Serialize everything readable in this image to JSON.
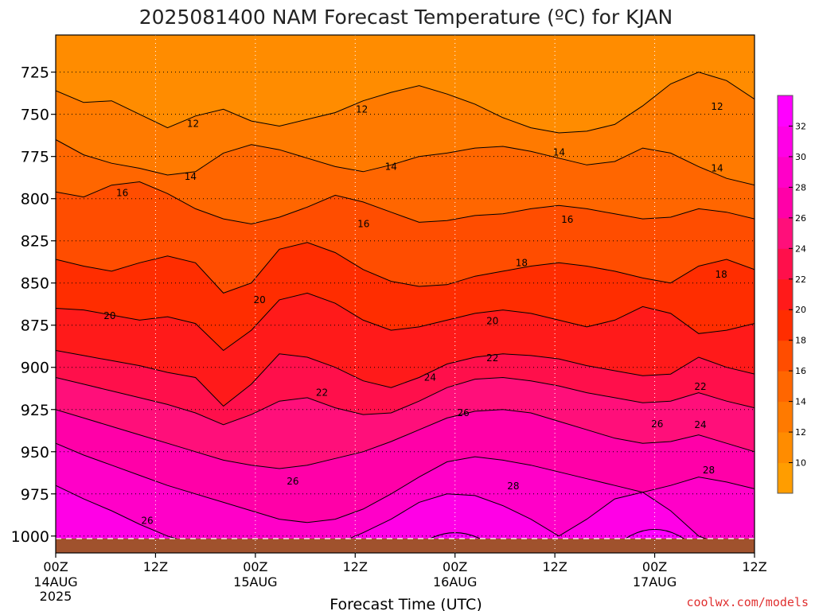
{
  "chart_data": {
    "type": "heatmap",
    "title": "2025081400 NAM Forecast Temperature (ºC) for KJAN",
    "xlabel": "Forecast Time (UTC)",
    "ylabel": "",
    "credit": "coolwx.com/models",
    "x_ticks": [
      {
        "hour": 0,
        "label": "00Z",
        "date": "14AUG",
        "year": "2025"
      },
      {
        "hour": 12,
        "label": "12Z",
        "date": "",
        "year": ""
      },
      {
        "hour": 24,
        "label": "00Z",
        "date": "15AUG",
        "year": ""
      },
      {
        "hour": 36,
        "label": "12Z",
        "date": "",
        "year": ""
      },
      {
        "hour": 48,
        "label": "00Z",
        "date": "16AUG",
        "year": ""
      },
      {
        "hour": 60,
        "label": "12Z",
        "date": "",
        "year": ""
      },
      {
        "hour": 72,
        "label": "00Z",
        "date": "17AUG",
        "year": ""
      },
      {
        "hour": 84,
        "label": "12Z",
        "date": "",
        "year": ""
      }
    ],
    "x_range_hours": [
      0,
      84
    ],
    "y_ticks": [
      725,
      750,
      775,
      800,
      825,
      850,
      875,
      900,
      925,
      950,
      975,
      1000
    ],
    "y_range_hpa": [
      703,
      1010
    ],
    "grid": true,
    "colorbar": {
      "position": "right",
      "labels": [
        10,
        12,
        14,
        16,
        18,
        20,
        22,
        24,
        26,
        28,
        30,
        32
      ],
      "bands": [
        {
          "min": 8,
          "max": 10,
          "color": "#ff9d00"
        },
        {
          "min": 10,
          "max": 12,
          "color": "#ff8c00"
        },
        {
          "min": 12,
          "max": 14,
          "color": "#ff7a00"
        },
        {
          "min": 14,
          "max": 16,
          "color": "#ff6600"
        },
        {
          "min": 16,
          "max": 18,
          "color": "#ff4d00"
        },
        {
          "min": 18,
          "max": 20,
          "color": "#ff2d00"
        },
        {
          "min": 20,
          "max": 22,
          "color": "#ff1a1a"
        },
        {
          "min": 22,
          "max": 24,
          "color": "#ff0f4b"
        },
        {
          "min": 24,
          "max": 26,
          "color": "#ff0f7a"
        },
        {
          "min": 26,
          "max": 28,
          "color": "#ff00a8"
        },
        {
          "min": 28,
          "max": 30,
          "color": "#ff00c8"
        },
        {
          "min": 30,
          "max": 32,
          "color": "#ff00e6"
        },
        {
          "min": 32,
          "max": 34,
          "color": "#ff00ff"
        }
      ]
    },
    "isotherms": [
      {
        "value": 12,
        "pressure_hpa": [
          736,
          743,
          742,
          750,
          758,
          751,
          747,
          754,
          757,
          753,
          749,
          742,
          737,
          733,
          738,
          744,
          752,
          758,
          761,
          760,
          756,
          745,
          732,
          725,
          730,
          741
        ],
        "labels": [
          {
            "hour": 16.5,
            "p": 755.5
          },
          {
            "hour": 36.8,
            "p": 747.0
          },
          {
            "hour": 79.5,
            "p": 745.5
          }
        ]
      },
      {
        "value": 14,
        "pressure_hpa": [
          765,
          774,
          779,
          782,
          786,
          784,
          773,
          768,
          771,
          776,
          781,
          784,
          780,
          775,
          773,
          770,
          769,
          772,
          776,
          780,
          778,
          770,
          773,
          781,
          788,
          792
        ],
        "labels": [
          {
            "hour": 16.2,
            "p": 787.0
          },
          {
            "hour": 40.3,
            "p": 781.0
          },
          {
            "hour": 60.5,
            "p": 772.5
          },
          {
            "hour": 79.5,
            "p": 782.0
          }
        ]
      },
      {
        "value": 16,
        "pressure_hpa": [
          796,
          799,
          792,
          790,
          797,
          806,
          812,
          815,
          811,
          805,
          798,
          802,
          808,
          814,
          813,
          810,
          809,
          806,
          804,
          806,
          809,
          812,
          811,
          806,
          808,
          812
        ],
        "labels": [
          {
            "hour": 8.0,
            "p": 796.5
          },
          {
            "hour": 37.0,
            "p": 815.0
          },
          {
            "hour": 61.5,
            "p": 812.5
          }
        ]
      },
      {
        "value": 18,
        "pressure_hpa": [
          836,
          840,
          843,
          838,
          834,
          838,
          856,
          850,
          830,
          826,
          832,
          842,
          849,
          852,
          851,
          846,
          843,
          840,
          838,
          840,
          843,
          847,
          850,
          840,
          836,
          842
        ],
        "labels": [
          {
            "hour": 56.0,
            "p": 838.0
          },
          {
            "hour": 80.0,
            "p": 845.0
          }
        ]
      },
      {
        "value": 20,
        "pressure_hpa": [
          865,
          866,
          869,
          872,
          870,
          874,
          890,
          878,
          860,
          856,
          862,
          872,
          878,
          876,
          872,
          868,
          866,
          868,
          872,
          876,
          872,
          864,
          868,
          880,
          878,
          874
        ],
        "labels": [
          {
            "hour": 6.5,
            "p": 869.5
          },
          {
            "hour": 24.5,
            "p": 860.0
          },
          {
            "hour": 52.5,
            "p": 872.5
          }
        ]
      },
      {
        "value": 22,
        "pressure_hpa": [
          890,
          893,
          896,
          899,
          903,
          906,
          923,
          910,
          892,
          894,
          900,
          908,
          912,
          906,
          898,
          894,
          892,
          893,
          895,
          899,
          902,
          905,
          904,
          894,
          900,
          904
        ],
        "labels": [
          {
            "hour": 32.0,
            "p": 915.0
          },
          {
            "hour": 52.5,
            "p": 894.5
          },
          {
            "hour": 77.5,
            "p": 911.5
          }
        ]
      },
      {
        "value": 24,
        "pressure_hpa": [
          906,
          910,
          914,
          918,
          922,
          927,
          934,
          928,
          920,
          918,
          924,
          928,
          927,
          920,
          912,
          907,
          906,
          908,
          911,
          915,
          918,
          921,
          920,
          915,
          920,
          924
        ],
        "labels": [
          {
            "hour": 45.0,
            "p": 906.0
          },
          {
            "hour": 77.5,
            "p": 934.0
          }
        ]
      },
      {
        "value": 26,
        "pressure_hpa": [
          925,
          930,
          935,
          940,
          945,
          950,
          955,
          958,
          960,
          958,
          954,
          950,
          944,
          937,
          930,
          926,
          925,
          927,
          932,
          937,
          942,
          945,
          944,
          940,
          945,
          950
        ],
        "labels": [
          {
            "hour": 49.0,
            "p": 927.0
          },
          {
            "hour": 72.3,
            "p": 933.5
          },
          {
            "hour": 28.5,
            "p": 967.5
          },
          {
            "hour": 11.0,
            "p": 991.0
          }
        ]
      },
      {
        "value": 28,
        "pressure_hpa": [
          945,
          952,
          958,
          964,
          970,
          975,
          980,
          985,
          990,
          992,
          990,
          984,
          975,
          965,
          956,
          953,
          955,
          958,
          962,
          966,
          970,
          974,
          970,
          965,
          968,
          972
        ],
        "labels": [
          {
            "hour": 55.0,
            "p": 970.5
          },
          {
            "hour": 78.5,
            "p": 961.0
          }
        ]
      },
      {
        "value": 30,
        "pressure_hpa": [
          970,
          978,
          985,
          993,
          1000,
          1005,
          1008,
          1008,
          1008,
          1008,
          1005,
          998,
          990,
          980,
          975,
          976,
          982,
          990,
          1000,
          990,
          978,
          974,
          985,
          1000,
          1006,
          1008
        ],
        "labels": []
      }
    ]
  }
}
